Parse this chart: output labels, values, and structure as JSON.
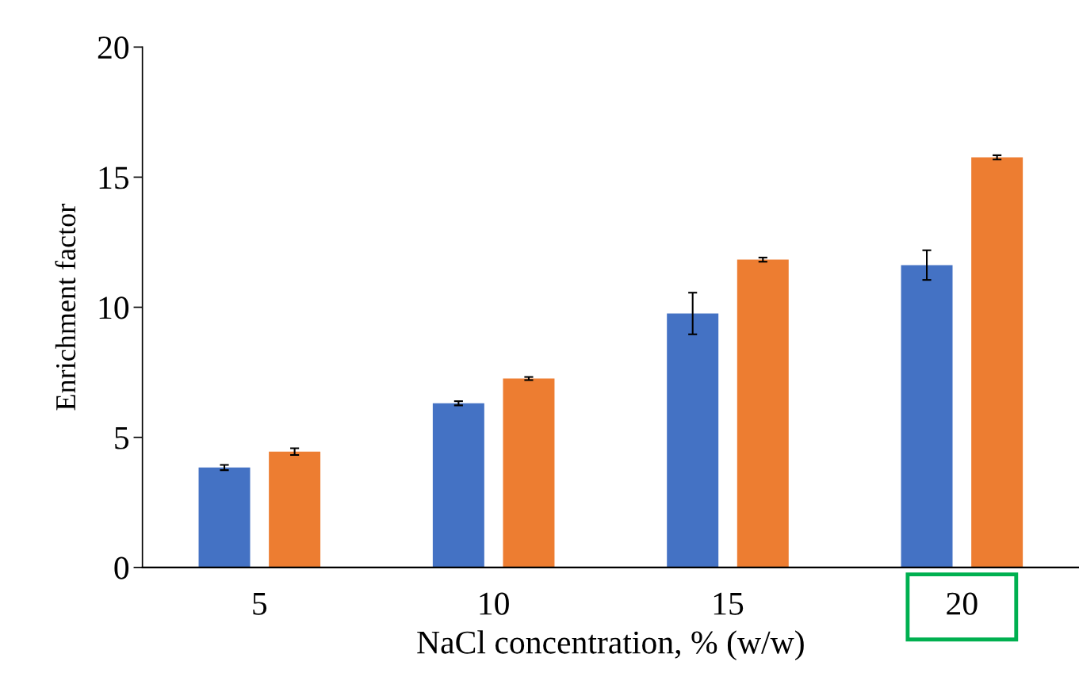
{
  "chart_data": {
    "type": "bar",
    "xlabel": "NaCl concentration, % (w/w)",
    "ylabel": "Enrichment factor",
    "categories": [
      "5",
      "10",
      "15",
      "20"
    ],
    "series": [
      {
        "color": "#4472c4",
        "values": [
          3.84,
          6.31,
          9.76,
          11.62
        ],
        "errors": [
          0.1,
          0.08,
          0.8,
          0.57
        ]
      },
      {
        "color": "#ed7d31",
        "values": [
          4.45,
          7.26,
          11.83,
          15.76
        ],
        "errors": [
          0.13,
          0.06,
          0.08,
          0.08
        ]
      }
    ],
    "ylim": [
      0,
      20
    ],
    "yticks": [
      0,
      5,
      10,
      15,
      20
    ],
    "grid": false,
    "legend": false
  }
}
